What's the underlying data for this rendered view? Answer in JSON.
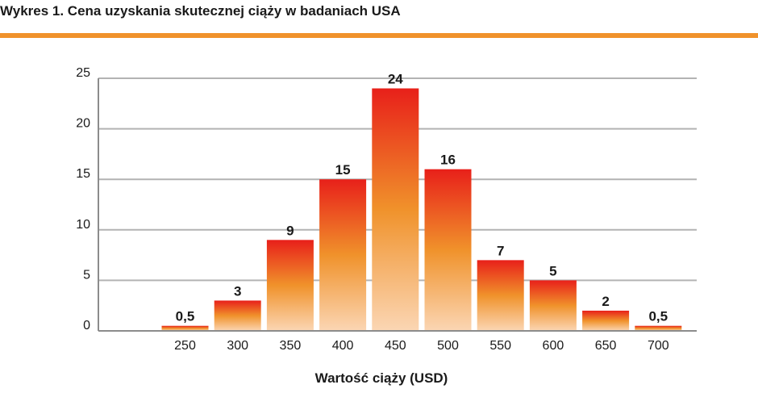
{
  "title": "Wykres 1. Cena uzyskania skutecznej ciąży w badaniach USA",
  "colors": {
    "accent_rule": "#f0922b",
    "bar_top": "#e8201a",
    "bar_mid": "#f0922b",
    "bar_bottom": "#fbd6b4",
    "grid": "#b3b3b3",
    "axis": "#8c8c8c",
    "text": "#1a1a1a"
  },
  "chart_data": {
    "type": "bar",
    "title": "Wykres 1. Cena uzyskania skutecznej ciąży w badaniach USA",
    "xlabel": "Wartość ciąży (USD)",
    "ylabel": "",
    "categories": [
      "250",
      "300",
      "350",
      "400",
      "450",
      "500",
      "550",
      "600",
      "650",
      "700"
    ],
    "values": [
      0.5,
      3,
      9,
      15,
      24,
      16,
      7,
      5,
      2,
      0.5
    ],
    "value_labels": [
      "0,5",
      "3",
      "9",
      "15",
      "24",
      "16",
      "7",
      "5",
      "2",
      "0,5"
    ],
    "ylim": [
      0,
      25
    ],
    "yticks": [
      0,
      5,
      10,
      15,
      20,
      25
    ],
    "grid": true,
    "legend": "none"
  }
}
